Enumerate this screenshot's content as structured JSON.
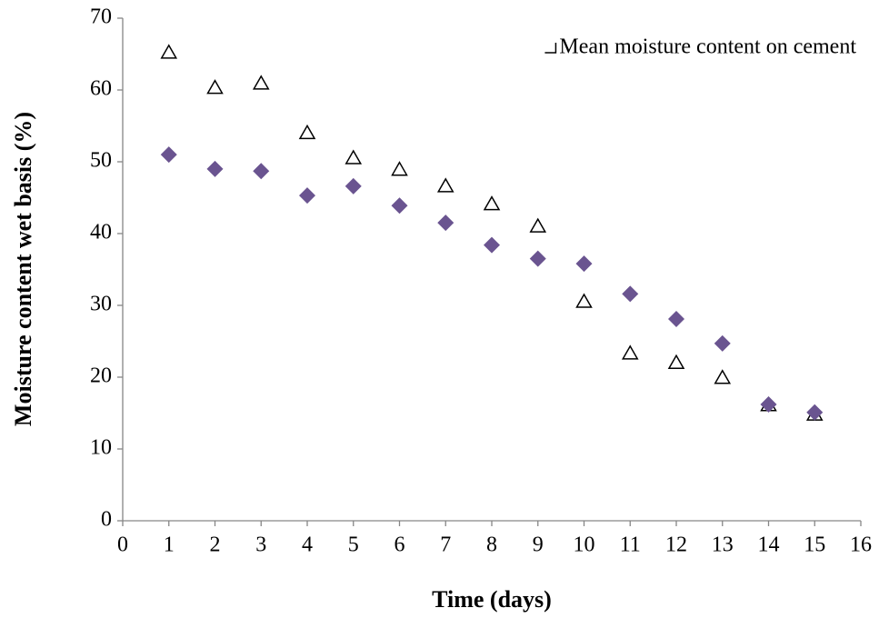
{
  "chart_data": {
    "type": "scatter",
    "x_label": "Time (days)",
    "y_label": "Moisture content wet basis (%)",
    "xlim": [
      0,
      16
    ],
    "xticks": [
      0,
      1,
      2,
      3,
      4,
      5,
      6,
      7,
      8,
      9,
      10,
      11,
      12,
      13,
      14,
      15,
      16
    ],
    "ylim": [
      0,
      70
    ],
    "yticks": [
      0,
      10,
      20,
      30,
      40,
      50,
      60,
      70
    ],
    "legend": "top-right",
    "series": [
      {
        "name": "Mean moisture content on cement",
        "marker": "triangle",
        "color": "#000000",
        "x": [
          1,
          2,
          3,
          4,
          5,
          6,
          7,
          8,
          9,
          10,
          11,
          12,
          13,
          14,
          15
        ],
        "values": [
          65.2,
          60.3,
          60.9,
          54.0,
          50.5,
          48.9,
          46.6,
          44.1,
          41.0,
          30.5,
          23.3,
          22.0,
          19.9,
          16.1,
          14.8
        ]
      },
      {
        "marker": "diamond",
        "color": "#6a5490",
        "x": [
          1,
          2,
          3,
          4,
          5,
          6,
          7,
          8,
          9,
          10,
          11,
          12,
          13,
          14,
          15
        ],
        "values": [
          51.0,
          49.0,
          48.7,
          45.3,
          46.6,
          43.9,
          41.5,
          38.4,
          36.5,
          35.8,
          31.6,
          28.1,
          24.7,
          16.2,
          15.1
        ]
      }
    ]
  }
}
